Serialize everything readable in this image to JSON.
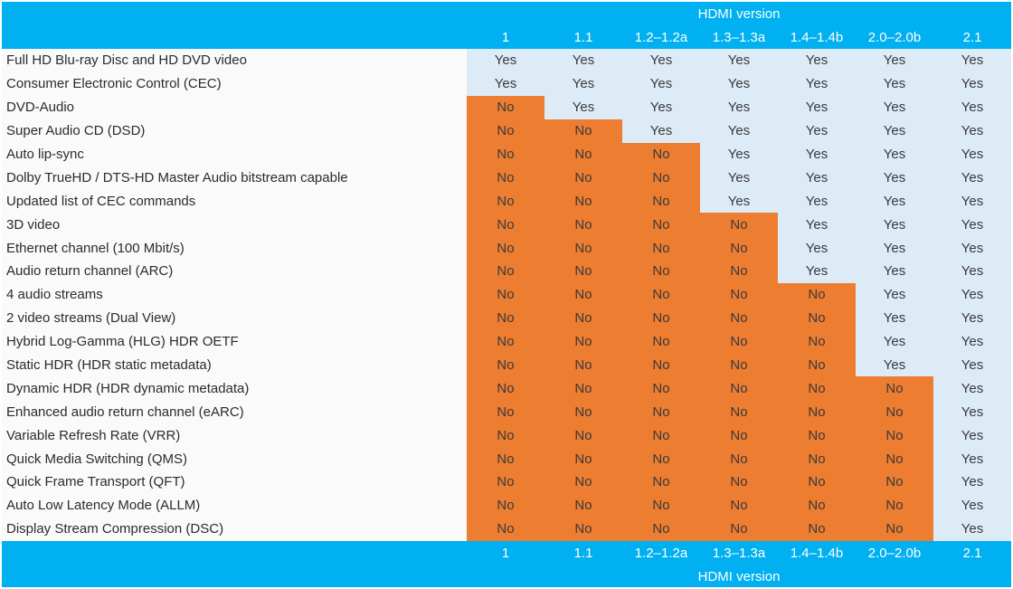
{
  "chart_data": {
    "type": "table",
    "title": "HDMI version",
    "columns": [
      "1",
      "1.1",
      "1.2–1.2a",
      "1.3–1.3a",
      "1.4–1.4b",
      "2.0–2.0b",
      "2.1"
    ],
    "yes_label": "Yes",
    "no_label": "No",
    "rows": [
      {
        "feature": "Full HD Blu-ray Disc and HD DVD video",
        "values": [
          "Yes",
          "Yes",
          "Yes",
          "Yes",
          "Yes",
          "Yes",
          "Yes"
        ]
      },
      {
        "feature": "Consumer Electronic Control (CEC)",
        "values": [
          "Yes",
          "Yes",
          "Yes",
          "Yes",
          "Yes",
          "Yes",
          "Yes"
        ]
      },
      {
        "feature": "DVD-Audio",
        "values": [
          "No",
          "Yes",
          "Yes",
          "Yes",
          "Yes",
          "Yes",
          "Yes"
        ]
      },
      {
        "feature": "Super Audio CD (DSD)",
        "values": [
          "No",
          "No",
          "Yes",
          "Yes",
          "Yes",
          "Yes",
          "Yes"
        ]
      },
      {
        "feature": "Auto lip-sync",
        "values": [
          "No",
          "No",
          "No",
          "Yes",
          "Yes",
          "Yes",
          "Yes"
        ]
      },
      {
        "feature": "Dolby TrueHD / DTS-HD Master Audio bitstream capable",
        "values": [
          "No",
          "No",
          "No",
          "Yes",
          "Yes",
          "Yes",
          "Yes"
        ]
      },
      {
        "feature": "Updated list of CEC commands",
        "values": [
          "No",
          "No",
          "No",
          "Yes",
          "Yes",
          "Yes",
          "Yes"
        ]
      },
      {
        "feature": "3D video",
        "values": [
          "No",
          "No",
          "No",
          "No",
          "Yes",
          "Yes",
          "Yes"
        ]
      },
      {
        "feature": "Ethernet channel (100 Mbit/s)",
        "values": [
          "No",
          "No",
          "No",
          "No",
          "Yes",
          "Yes",
          "Yes"
        ]
      },
      {
        "feature": "Audio return channel (ARC)",
        "values": [
          "No",
          "No",
          "No",
          "No",
          "Yes",
          "Yes",
          "Yes"
        ]
      },
      {
        "feature": "4 audio streams",
        "values": [
          "No",
          "No",
          "No",
          "No",
          "No",
          "Yes",
          "Yes"
        ]
      },
      {
        "feature": "2 video streams (Dual View)",
        "values": [
          "No",
          "No",
          "No",
          "No",
          "No",
          "Yes",
          "Yes"
        ]
      },
      {
        "feature": "Hybrid Log-Gamma (HLG) HDR OETF",
        "values": [
          "No",
          "No",
          "No",
          "No",
          "No",
          "Yes",
          "Yes"
        ]
      },
      {
        "feature": "Static HDR (HDR static metadata)",
        "values": [
          "No",
          "No",
          "No",
          "No",
          "No",
          "Yes",
          "Yes"
        ]
      },
      {
        "feature": "Dynamic HDR (HDR dynamic metadata)",
        "values": [
          "No",
          "No",
          "No",
          "No",
          "No",
          "No",
          "Yes"
        ]
      },
      {
        "feature": "Enhanced audio return channel (eARC)",
        "values": [
          "No",
          "No",
          "No",
          "No",
          "No",
          "No",
          "Yes"
        ]
      },
      {
        "feature": "Variable Refresh Rate (VRR)",
        "values": [
          "No",
          "No",
          "No",
          "No",
          "No",
          "No",
          "Yes"
        ]
      },
      {
        "feature": "Quick Media Switching (QMS)",
        "values": [
          "No",
          "No",
          "No",
          "No",
          "No",
          "No",
          "Yes"
        ]
      },
      {
        "feature": "Quick Frame Transport (QFT)",
        "values": [
          "No",
          "No",
          "No",
          "No",
          "No",
          "No",
          "Yes"
        ]
      },
      {
        "feature": "Auto Low Latency Mode (ALLM)",
        "values": [
          "No",
          "No",
          "No",
          "No",
          "No",
          "No",
          "Yes"
        ]
      },
      {
        "feature": "Display Stream Compression (DSC)",
        "values": [
          "No",
          "No",
          "No",
          "No",
          "No",
          "No",
          "Yes"
        ]
      }
    ],
    "layout": {
      "grid": false,
      "header_position": "top-and-bottom"
    }
  },
  "footer": {
    "title": "HDMI version"
  },
  "colors": {
    "header_bg": "#00B0F0",
    "header_text": "#FFFFFF",
    "yes_bg": "#DDEBF7",
    "no_bg": "#ED7D31",
    "cell_text": "#3A3A3A",
    "feature_text": "#2B2B2B",
    "feature_bg": "#FAFAFA",
    "page_bg": "#FFFFFF"
  }
}
